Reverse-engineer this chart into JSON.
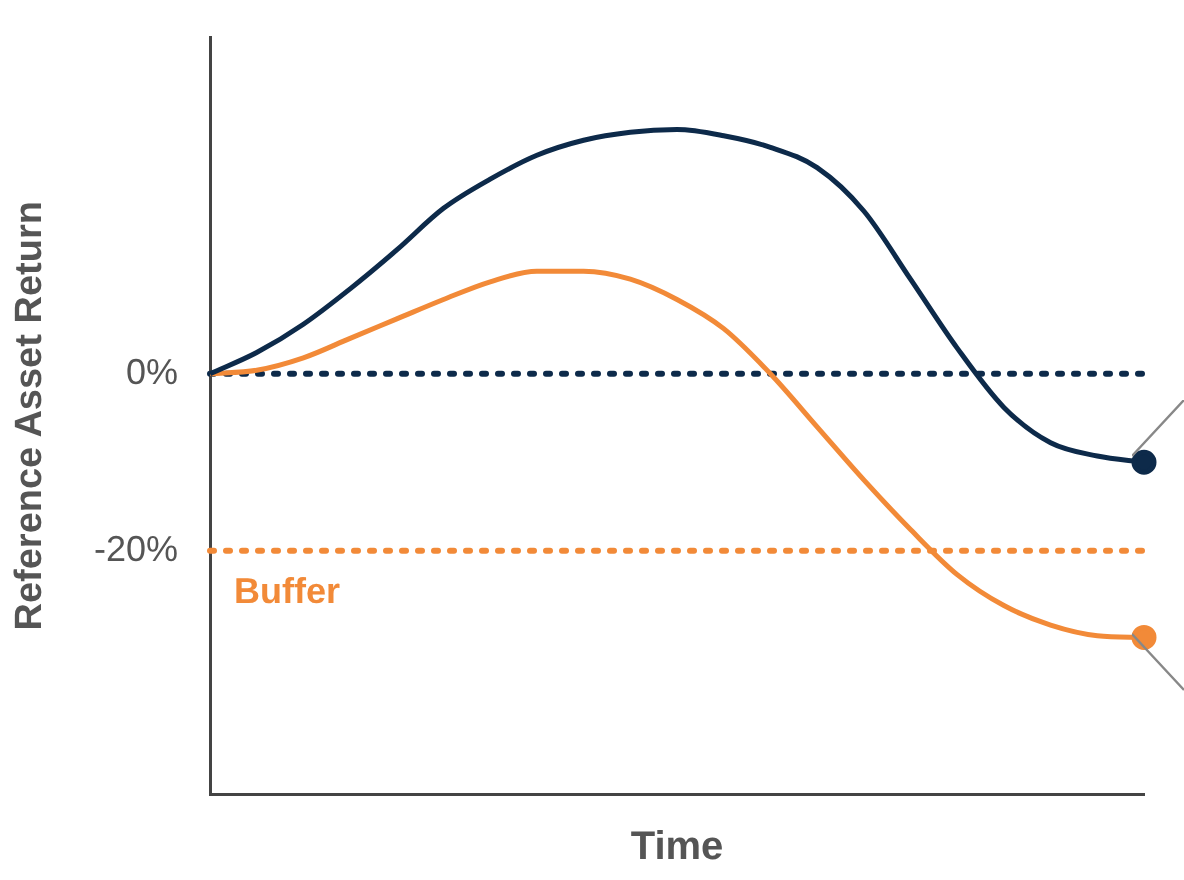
{
  "chart_data": {
    "type": "line",
    "xlabel": "Time",
    "ylabel": "Reference Asset Return",
    "categories": [
      null,
      null,
      null,
      null,
      null,
      null,
      null,
      null,
      null,
      null,
      null,
      null,
      null,
      null,
      null,
      null,
      null,
      null,
      null,
      null,
      null
    ],
    "series": [
      {
        "color": "#0d2a4a",
        "values": [
          0,
          2.4,
          5.6,
          9.6,
          14,
          18.7,
          22,
          24.7,
          26.4,
          27.3,
          27.6,
          26.9,
          25.6,
          23.3,
          18.4,
          10.7,
          2.9,
          -3.8,
          -7.8,
          -9.3,
          -10
        ]
      },
      {
        "color": "#f28a38",
        "values": [
          0,
          0.4,
          1.8,
          4,
          6.2,
          8.4,
          10.4,
          11.6,
          11.6,
          10.7,
          8.4,
          5.1,
          0,
          -6,
          -12,
          -17.6,
          -22.7,
          -26.2,
          -28.4,
          -29.6,
          -29.8
        ]
      }
    ],
    "ylim": [
      -47.5,
      38
    ],
    "yticks": [
      {
        "value": 0,
        "label": "0%"
      },
      {
        "value": -20,
        "label": "-20%"
      }
    ],
    "ref_lines": [
      {
        "axis": "y",
        "value": 0,
        "label": null,
        "color": "#0d2a4a",
        "line_style": "dotted"
      },
      {
        "axis": "y",
        "value": -20,
        "label": "Buffer",
        "color": "#f28a38",
        "line_style": "dotted"
      }
    ],
    "grid": false,
    "legend": false,
    "line_style": "solid"
  }
}
